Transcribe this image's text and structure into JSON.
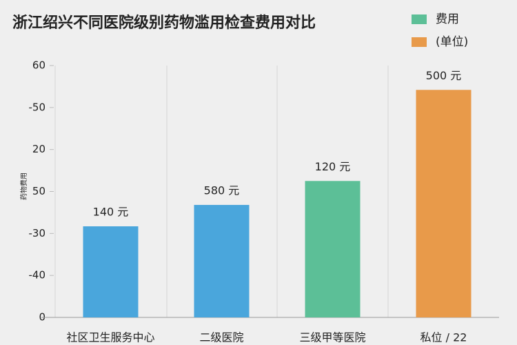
{
  "chart_data": {
    "type": "bar",
    "title": "浙江绍兴不同医院级别药物滥用检查费用对比",
    "ylabel": "药物费用",
    "categories": [
      "社区卫生服务中心",
      "二级医院",
      "三级甲等医院",
      "私位 / 22"
    ],
    "values": [
      21.7,
      26.8,
      32.5,
      54.2
    ],
    "colors": [
      "#4aa6dc",
      "#4aa6dc",
      "#5cbf97",
      "#e89a4a"
    ],
    "annotations": [
      "140 元",
      "580 元",
      "120 元",
      "500 元"
    ],
    "legend": [
      {
        "name": "费用",
        "color": "#5cbf97"
      },
      {
        "name": "(单位)",
        "color": "#e89a4a"
      }
    ],
    "ylim": [
      0,
      60
    ],
    "yticks": [
      0,
      {
        "value": 10,
        "label": "-40"
      },
      {
        "value": 20,
        "label": "-30"
      },
      {
        "value": 30,
        "label": "50"
      },
      {
        "value": 40,
        "label": "20"
      },
      {
        "value": 50,
        "label": "-50"
      },
      60
    ]
  }
}
